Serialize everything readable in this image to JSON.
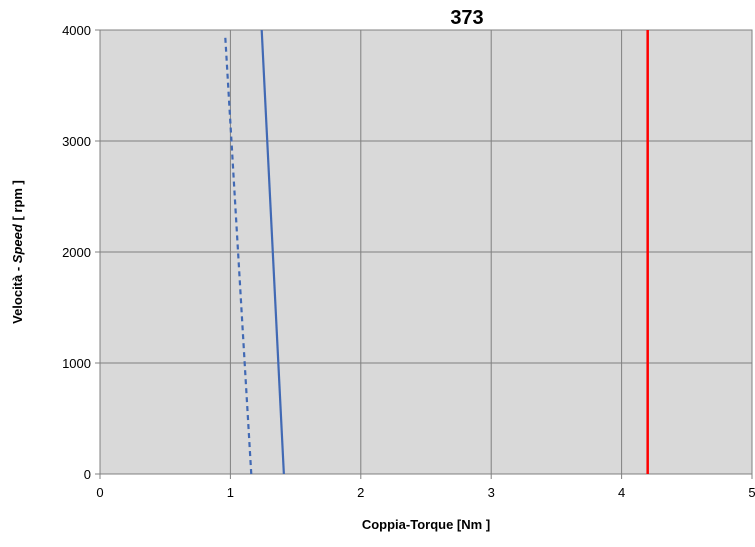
{
  "chart_data": {
    "type": "line",
    "title": "373",
    "xlabel": "Coppia-Torque [Nm ]",
    "ylabel": {
      "prefix": "Velocità - ",
      "italic": "Speed",
      "suffix": " [ rpm ]"
    },
    "xlim": [
      0,
      5
    ],
    "ylim": [
      0,
      4000
    ],
    "x_ticks": [
      "0",
      "1",
      "2",
      "3",
      "4",
      "5"
    ],
    "y_ticks": [
      "0",
      "1000",
      "2000",
      "3000",
      "4000"
    ],
    "grid": true,
    "legend": "none",
    "colors": {
      "plot_background": "#d9d9d9",
      "grid": "#808080",
      "solid_series": "#4169b4",
      "dashed_series": "#4169b4",
      "vertical_line": "#ff0000"
    },
    "series": [
      {
        "style": "solid",
        "color": "#4169b4",
        "points": [
          [
            1.41,
            0
          ],
          [
            1.24,
            4000
          ]
        ]
      },
      {
        "style": "dashed",
        "color": "#4169b4",
        "points": [
          [
            1.16,
            0
          ],
          [
            0.96,
            3950
          ]
        ]
      },
      {
        "style": "solid",
        "color": "#ff0000",
        "points": [
          [
            4.2,
            0
          ],
          [
            4.2,
            4000
          ]
        ]
      }
    ]
  }
}
